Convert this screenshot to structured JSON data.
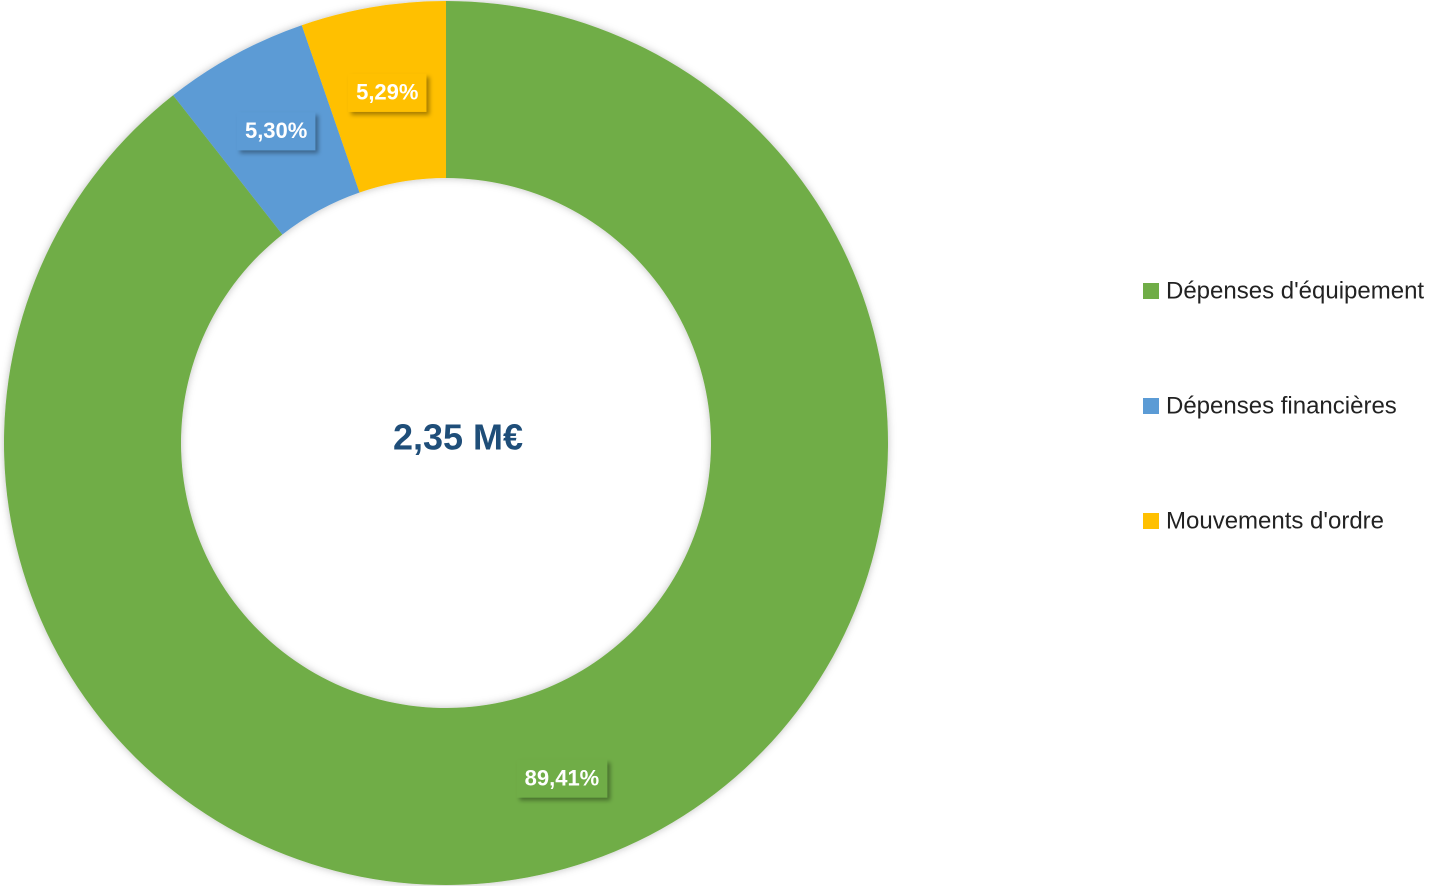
{
  "chart_data": {
    "type": "donut",
    "annotation": "2,35 M€",
    "categories": [
      "Dépenses d'équipement",
      "Dépenses financières",
      "Mouvements d'ordre"
    ],
    "values": [
      89.41,
      5.3,
      5.29
    ],
    "value_labels": [
      "89,41%",
      "5,30%",
      "5,29%"
    ],
    "colors": [
      "#70ad47",
      "#5b9bd5",
      "#ffc000"
    ],
    "legend": "right"
  }
}
